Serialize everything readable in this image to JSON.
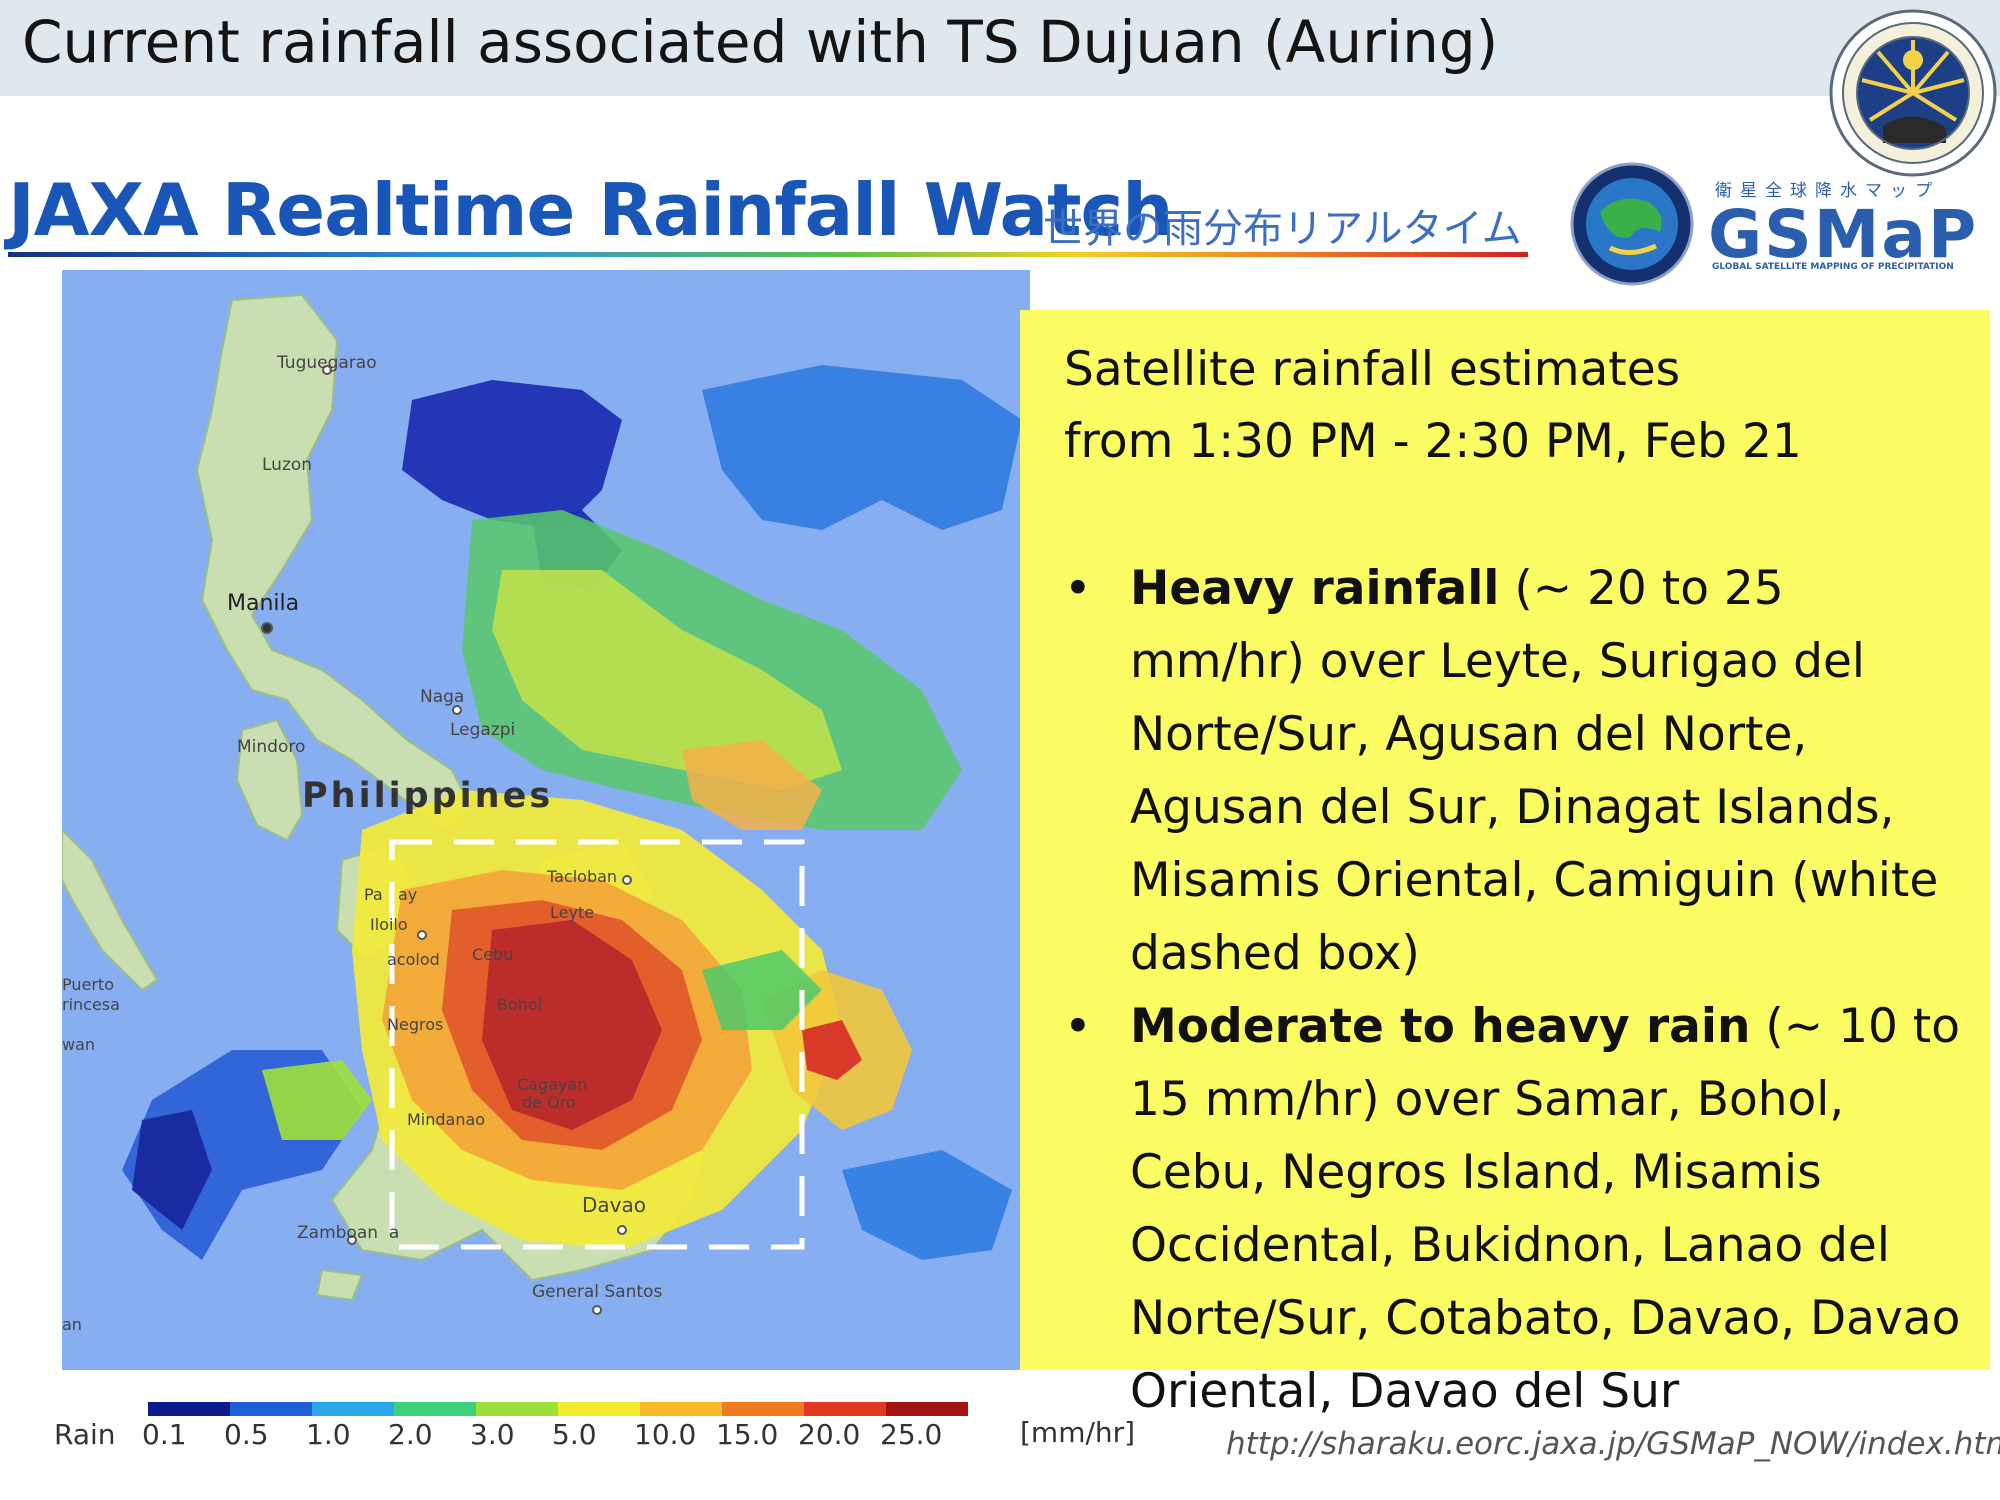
{
  "header": {
    "title": "Current rainfall associated with TS Dujuan (Auring)"
  },
  "banner": {
    "main": "JAXA Realtime Rainfall Watch",
    "japanese": "世界の雨分布リアルタイム"
  },
  "gsmap_logo": {
    "japanese": "衛星全球降水マップ",
    "wordmark": "GSMaP",
    "subtitle": "GLOBAL SATELLITE MAPPING OF PRECIPITATION"
  },
  "map": {
    "place_labels": {
      "tuguegarao": "Tuguegarao",
      "luzon": "Luzon",
      "manila": "Manila",
      "naga": "Naga",
      "legazpi": "Legazpi",
      "mindoro": "Mindoro",
      "philippines": "Philippines",
      "tacloban": "Tacloban",
      "leyte": "Leyte",
      "panay": "Pa   ay",
      "iloilo": "Iloilo",
      "bacolod": "acolod",
      "cebu": "Cebu",
      "negros": "Negros",
      "bohol": "Bohol",
      "puerto_princesa": "Puerto\nrincesa",
      "palawan": "wan",
      "cagayan_de_oro": "Cagayan\nde Oro",
      "mindanao": "Mindanao",
      "davao": "Davao",
      "zamboanga": "Zamboan  a",
      "general_santos": "General Santos",
      "edge": "an"
    },
    "colors": {
      "ocean": "#88aef2",
      "land": "#c9dfb2"
    }
  },
  "info": {
    "lead_line1": "Satellite rainfall estimates",
    "lead_line2": "from 1:30 PM - 2:30 PM, Feb 21",
    "bullet_char": "•",
    "items": [
      {
        "bold": "Heavy rainfall",
        "rest": " (~ 20 to 25 mm/hr) over Leyte, Surigao del Norte/Sur, Agusan del Norte, Agusan del Sur, Dinagat Islands, Misamis Oriental, Camiguin (white dashed box)"
      },
      {
        "bold": "Moderate to heavy rain",
        "rest": " (~ 10 to 15 mm/hr) over Samar, Bohol, Cebu, Negros Island, Misamis Occidental, Bukidnon, Lanao del Norte/Sur, Cotabato, Davao, Davao Oriental, Davao del Sur"
      }
    ]
  },
  "legend": {
    "label": "Rain",
    "ticks": [
      "0.1",
      "0.5",
      "1.0",
      "2.0",
      "3.0",
      "5.0",
      "10.0",
      "15.0",
      "20.0",
      "25.0"
    ],
    "units": "[mm/hr]",
    "colors": [
      "#0c1a8c",
      "#1f5fd6",
      "#2ba7ea",
      "#3dd07a",
      "#9ee03a",
      "#f2ea2a",
      "#f5b92a",
      "#ee7a22",
      "#e1391f",
      "#a51414"
    ]
  },
  "source": {
    "url": "http://sharaku.eorc.jaxa.jp/GSMaP_NOW/index.htm"
  }
}
